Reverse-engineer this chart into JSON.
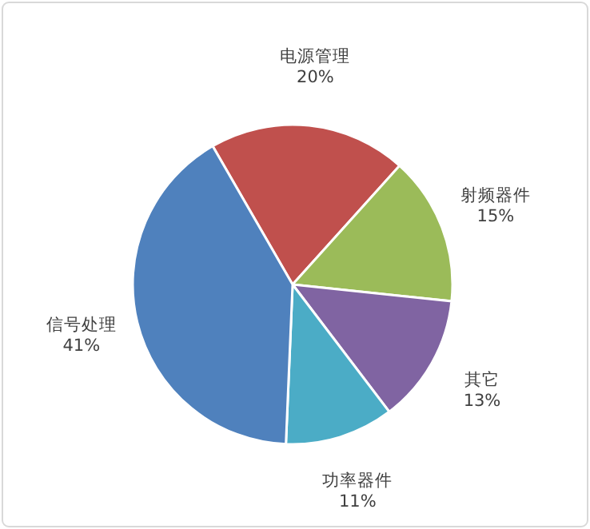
{
  "chart_data": {
    "type": "pie",
    "categories": [
      "电源管理",
      "射频器件",
      "其它",
      "功率器件",
      "信号处理"
    ],
    "values": [
      20,
      15,
      13,
      11,
      41
    ],
    "value_labels": [
      "20%",
      "15%",
      "13%",
      "11%",
      "41%"
    ],
    "colors": [
      "#c0504d",
      "#9bbb59",
      "#8064a2",
      "#4bacc6",
      "#4f81bd"
    ]
  }
}
